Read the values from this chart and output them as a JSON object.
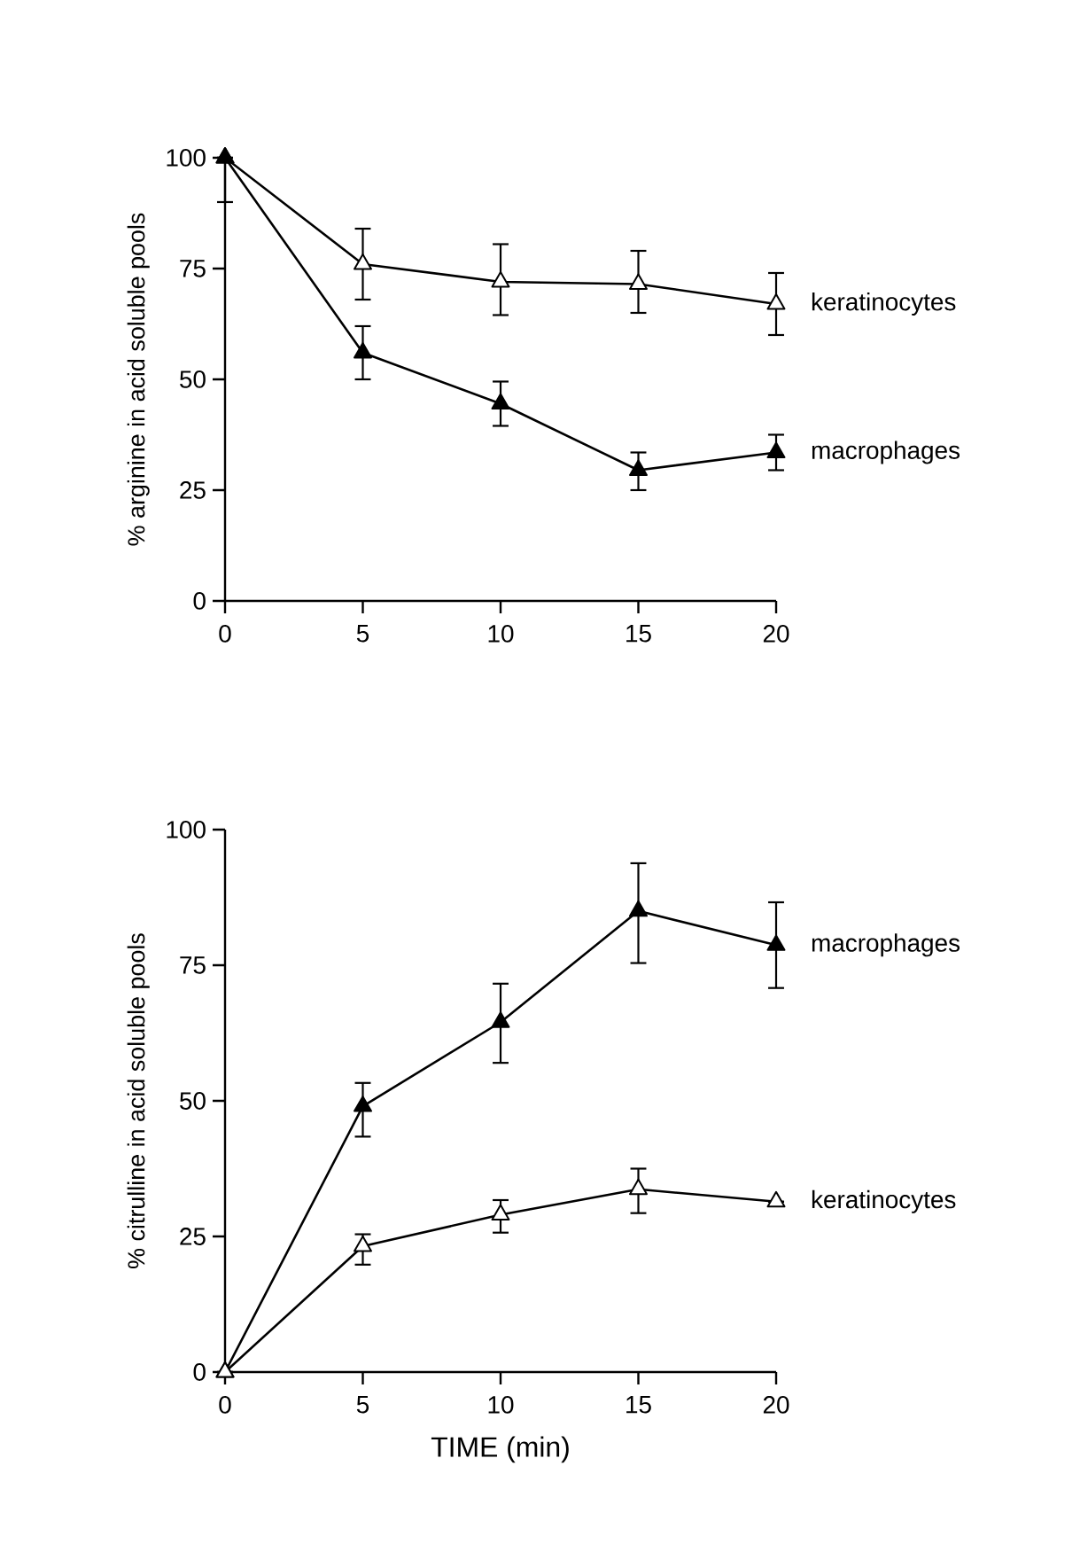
{
  "chart_data": [
    {
      "type": "line",
      "ylabel": "% arginine in acid soluble pools",
      "x": [
        0,
        5,
        10,
        15,
        20
      ],
      "xlim": [
        0,
        20
      ],
      "xticks": [
        0,
        5,
        10,
        15,
        20
      ],
      "ylim": [
        0,
        100
      ],
      "yticks": [
        0,
        25,
        50,
        75,
        100
      ],
      "marker": "triangle",
      "series": [
        {
          "name": "keratinocytes",
          "color": "#ffffff",
          "values": [
            100,
            76,
            72,
            71.5,
            67
          ],
          "errors": [
            null,
            [
              68,
              84
            ],
            [
              64.5,
              80.5
            ],
            [
              65,
              79
            ],
            [
              60,
              74
            ]
          ]
        },
        {
          "name": "macrophages",
          "color": "#000000",
          "values": [
            100,
            56,
            44.5,
            29.5,
            33.5
          ],
          "errors": [
            [
              90,
              100
            ],
            [
              50,
              62
            ],
            [
              39.5,
              49.5
            ],
            [
              25,
              33.5
            ],
            [
              29.5,
              37.5
            ]
          ]
        }
      ]
    },
    {
      "type": "line",
      "xlabel": "TIME (min)",
      "ylabel": "% citrulline in acid soluble pools",
      "x": [
        0,
        5,
        10,
        15,
        20
      ],
      "xlim": [
        0,
        20
      ],
      "xticks": [
        0,
        5,
        10,
        15,
        20
      ],
      "ylim": [
        0,
        100
      ],
      "yticks": [
        0,
        25,
        50,
        75,
        100
      ],
      "marker": "triangle",
      "series": [
        {
          "name": "macrophages",
          "color": "#000000",
          "values": [
            0,
            49,
            64.5,
            85,
            78.7
          ],
          "errors": [
            null,
            [
              43.4,
              53.3
            ],
            [
              57,
              71.6
            ],
            [
              75.4,
              93.8
            ],
            [
              70.8,
              86.6
            ]
          ]
        },
        {
          "name": "keratinocytes",
          "color": "#ffffff",
          "values": [
            0,
            23.2,
            29,
            33.7,
            31.4
          ],
          "errors": [
            null,
            [
              19.8,
              25.4
            ],
            [
              25.7,
              31.7
            ],
            [
              29.3,
              37.5
            ],
            null
          ]
        }
      ]
    }
  ]
}
